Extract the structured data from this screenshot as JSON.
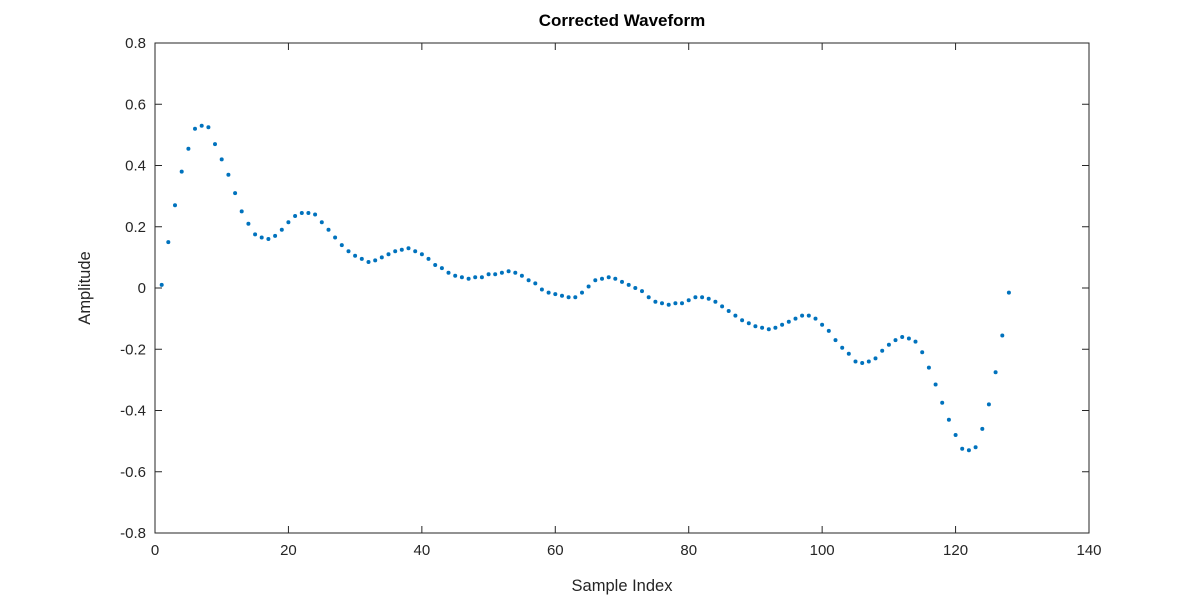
{
  "figure": {
    "background": "#ffffff"
  },
  "chart_data": {
    "type": "scatter",
    "title": "Corrected Waveform",
    "xlabel": "Sample Index",
    "ylabel": "Amplitude",
    "xlim": [
      0,
      140
    ],
    "ylim": [
      -0.8,
      0.8
    ],
    "xticks": [
      0,
      20,
      40,
      60,
      80,
      100,
      120,
      140
    ],
    "yticks": [
      -0.8,
      -0.6,
      -0.4,
      -0.2,
      0,
      0.2,
      0.4,
      0.6,
      0.8
    ],
    "grid": false,
    "legend": null,
    "box": true,
    "axis_color": "#262626",
    "marker": {
      "style": "point",
      "color": "#0072BD",
      "radius_px": 2
    },
    "series": [
      {
        "name": "corrected-waveform",
        "x": [
          1,
          2,
          3,
          4,
          5,
          6,
          7,
          8,
          9,
          10,
          11,
          12,
          13,
          14,
          15,
          16,
          17,
          18,
          19,
          20,
          21,
          22,
          23,
          24,
          25,
          26,
          27,
          28,
          29,
          30,
          31,
          32,
          33,
          34,
          35,
          36,
          37,
          38,
          39,
          40,
          41,
          42,
          43,
          44,
          45,
          46,
          47,
          48,
          49,
          50,
          51,
          52,
          53,
          54,
          55,
          56,
          57,
          58,
          59,
          60,
          61,
          62,
          63,
          64,
          65,
          66,
          67,
          68,
          69,
          70,
          71,
          72,
          73,
          74,
          75,
          76,
          77,
          78,
          79,
          80,
          81,
          82,
          83,
          84,
          85,
          86,
          87,
          88,
          89,
          90,
          91,
          92,
          93,
          94,
          95,
          96,
          97,
          98,
          99,
          100,
          101,
          102,
          103,
          104,
          105,
          106,
          107,
          108,
          109,
          110,
          111,
          112,
          113,
          114,
          115,
          116,
          117,
          118,
          119,
          120,
          121,
          122,
          123,
          124,
          125,
          126,
          127,
          128
        ],
        "y": [
          0.01,
          0.15,
          0.27,
          0.38,
          0.455,
          0.52,
          0.53,
          0.525,
          0.47,
          0.42,
          0.37,
          0.31,
          0.25,
          0.21,
          0.175,
          0.165,
          0.16,
          0.17,
          0.19,
          0.215,
          0.235,
          0.245,
          0.245,
          0.24,
          0.215,
          0.19,
          0.165,
          0.14,
          0.12,
          0.105,
          0.095,
          0.085,
          0.09,
          0.1,
          0.11,
          0.12,
          0.125,
          0.13,
          0.12,
          0.11,
          0.095,
          0.075,
          0.065,
          0.05,
          0.04,
          0.035,
          0.03,
          0.035,
          0.035,
          0.045,
          0.045,
          0.05,
          0.055,
          0.05,
          0.04,
          0.025,
          0.015,
          -0.005,
          -0.015,
          -0.02,
          -0.025,
          -0.03,
          -0.03,
          -0.015,
          0.005,
          0.025,
          0.03,
          0.035,
          0.03,
          0.02,
          0.01,
          0.0,
          -0.01,
          -0.03,
          -0.045,
          -0.05,
          -0.055,
          -0.05,
          -0.05,
          -0.04,
          -0.03,
          -0.03,
          -0.035,
          -0.045,
          -0.06,
          -0.075,
          -0.09,
          -0.105,
          -0.115,
          -0.125,
          -0.13,
          -0.135,
          -0.13,
          -0.12,
          -0.11,
          -0.1,
          -0.09,
          -0.09,
          -0.1,
          -0.12,
          -0.14,
          -0.17,
          -0.195,
          -0.215,
          -0.24,
          -0.245,
          -0.24,
          -0.23,
          -0.205,
          -0.185,
          -0.17,
          -0.16,
          -0.165,
          -0.175,
          -0.21,
          -0.26,
          -0.315,
          -0.375,
          -0.43,
          -0.48,
          -0.525,
          -0.53,
          -0.52,
          -0.46,
          -0.38,
          -0.275,
          -0.155,
          -0.015
        ]
      }
    ]
  }
}
